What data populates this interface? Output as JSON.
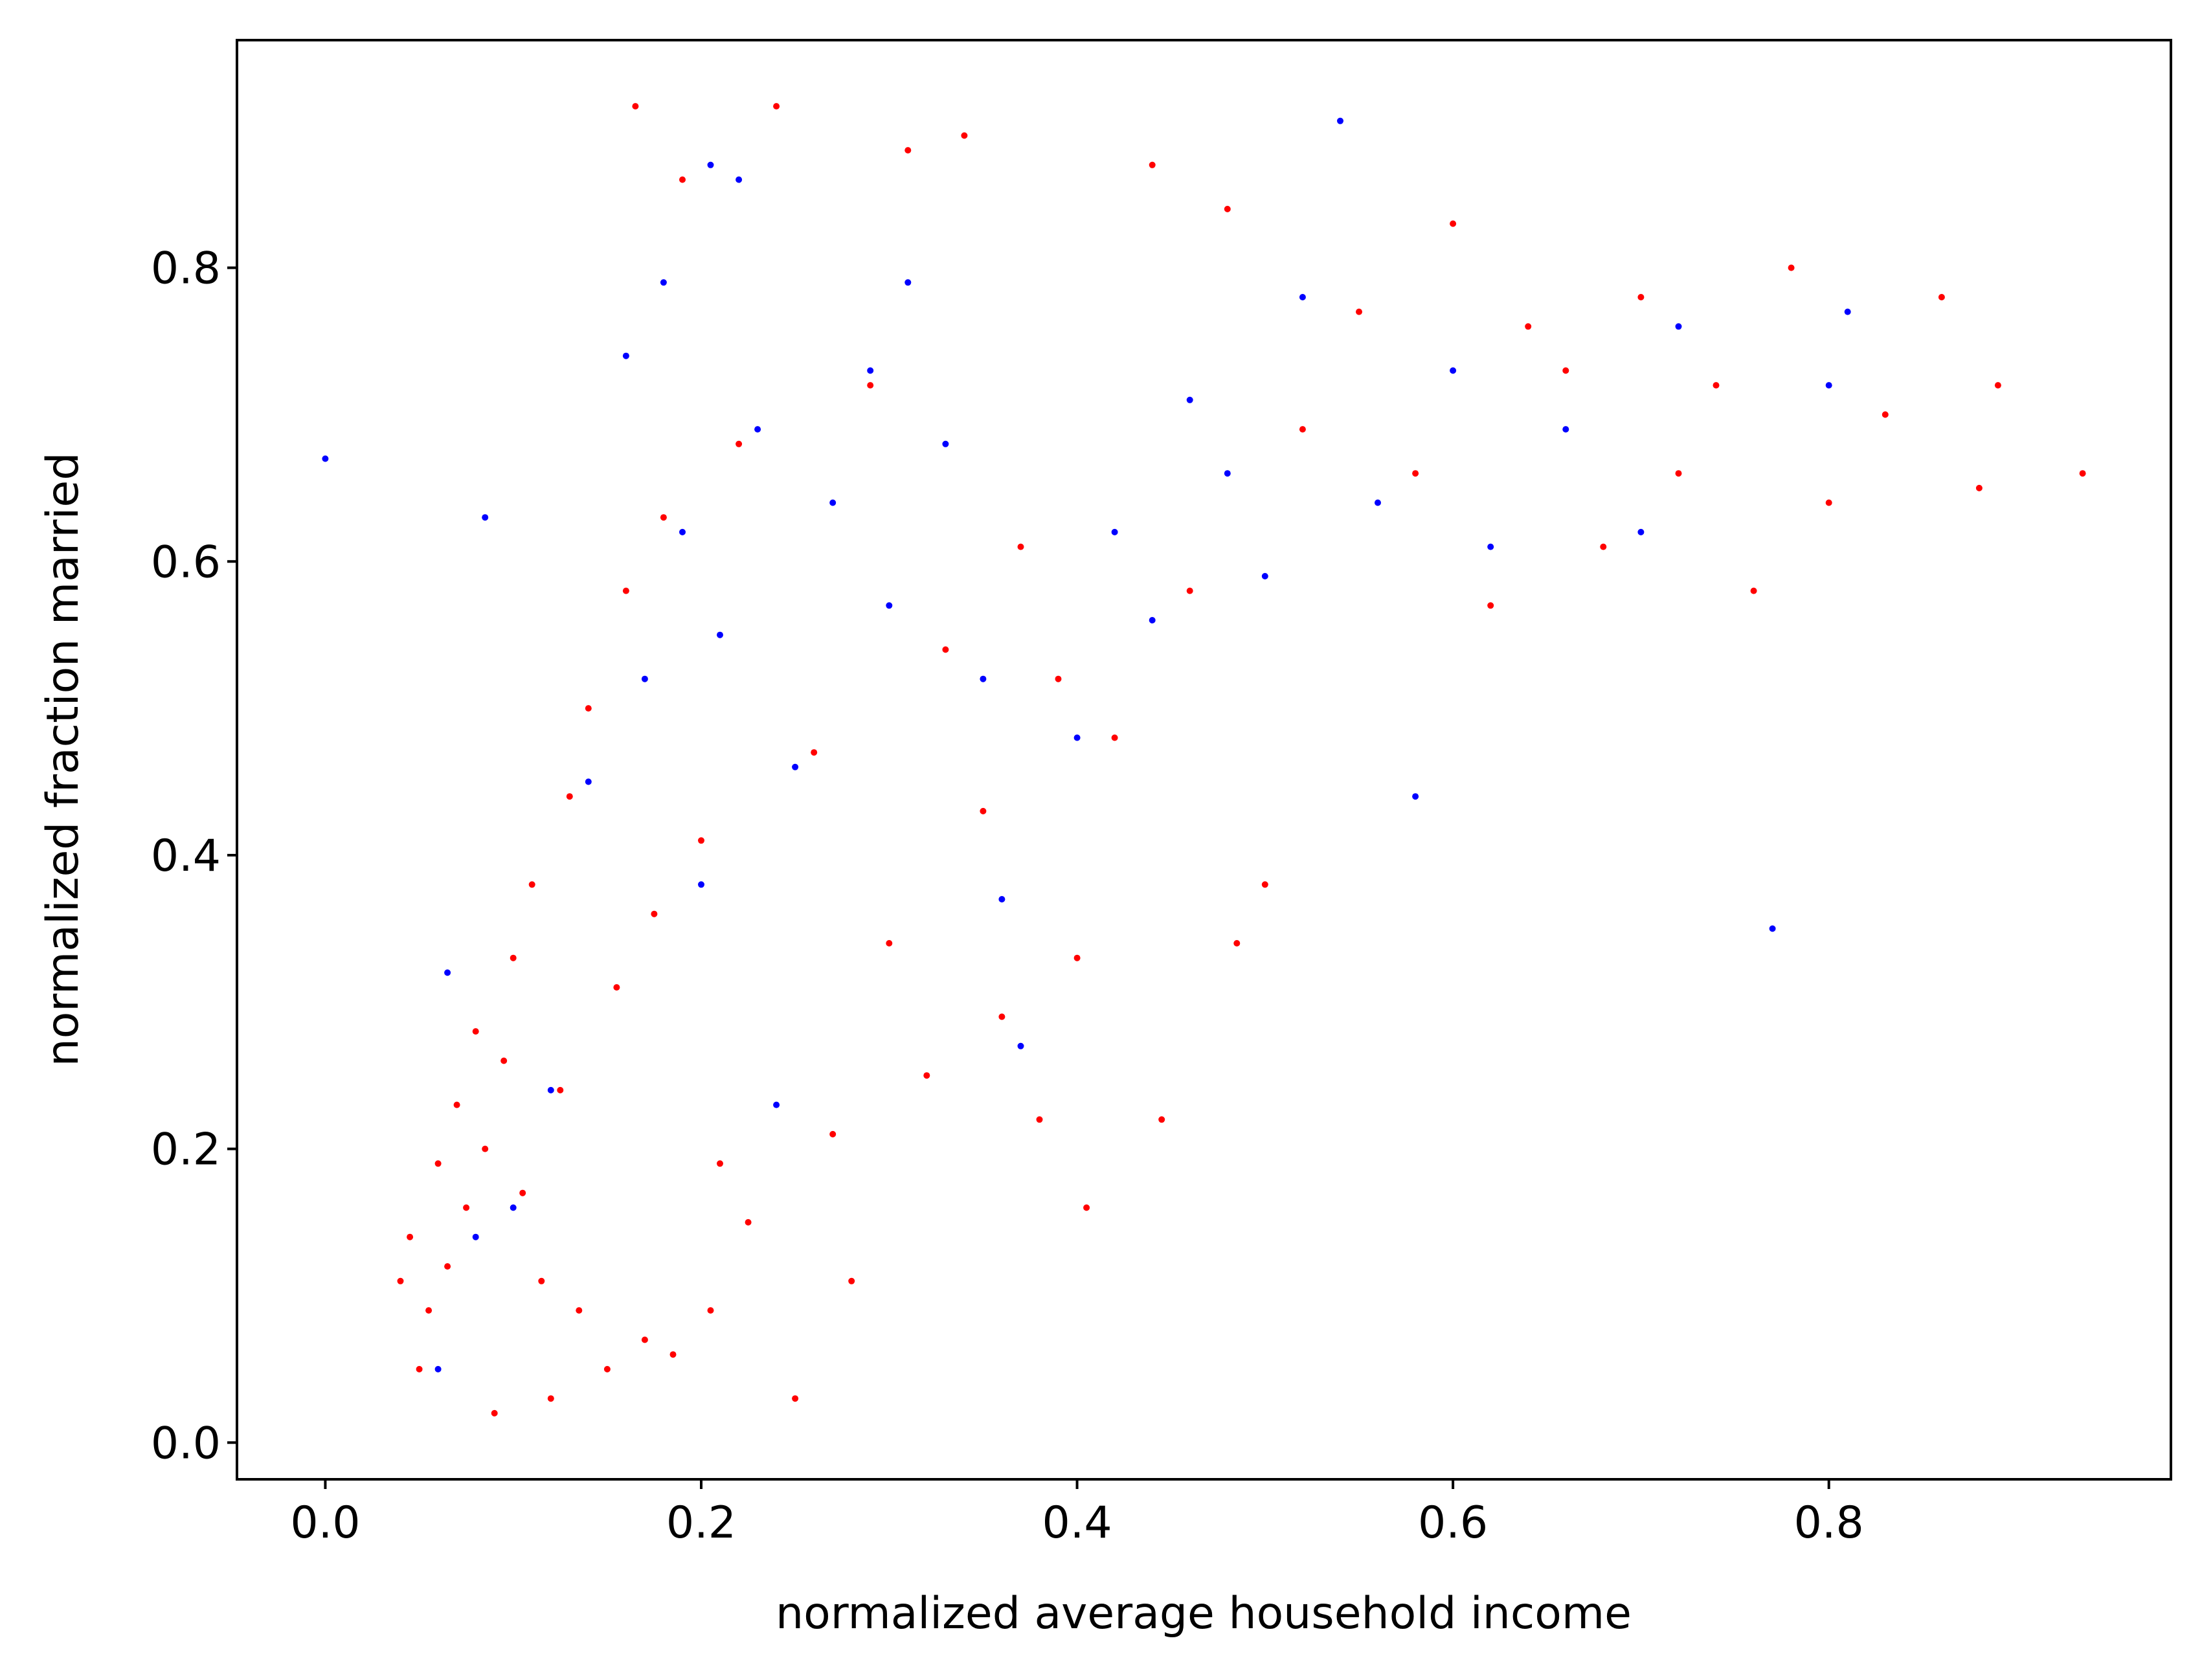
{
  "chart_data": {
    "type": "scatter",
    "title": "",
    "xlabel": "normalized average household income",
    "ylabel": "normalized fraction married",
    "xlim": [
      -0.047,
      0.982
    ],
    "ylim": [
      -0.025,
      0.955
    ],
    "xticks": [
      "0.0",
      "0.2",
      "0.4",
      "0.6",
      "0.8"
    ],
    "yticks": [
      "0.0",
      "0.2",
      "0.4",
      "0.6",
      "0.8"
    ],
    "grid": false,
    "legend": "none",
    "colors": {
      "series_red": "#ff0000",
      "series_blue": "#0000ff",
      "axis": "#000000",
      "background": "#ffffff"
    },
    "series": [
      {
        "name": "red",
        "color": "#ff0000",
        "points": [
          [
            0.04,
            0.11
          ],
          [
            0.045,
            0.14
          ],
          [
            0.05,
            0.05
          ],
          [
            0.055,
            0.09
          ],
          [
            0.06,
            0.19
          ],
          [
            0.065,
            0.12
          ],
          [
            0.07,
            0.23
          ],
          [
            0.075,
            0.16
          ],
          [
            0.08,
            0.28
          ],
          [
            0.085,
            0.2
          ],
          [
            0.09,
            0.02
          ],
          [
            0.095,
            0.26
          ],
          [
            0.1,
            0.33
          ],
          [
            0.105,
            0.17
          ],
          [
            0.11,
            0.38
          ],
          [
            0.115,
            0.11
          ],
          [
            0.12,
            0.03
          ],
          [
            0.125,
            0.24
          ],
          [
            0.13,
            0.44
          ],
          [
            0.135,
            0.09
          ],
          [
            0.14,
            0.5
          ],
          [
            0.15,
            0.05
          ],
          [
            0.155,
            0.31
          ],
          [
            0.16,
            0.58
          ],
          [
            0.165,
            0.91
          ],
          [
            0.17,
            0.07
          ],
          [
            0.175,
            0.36
          ],
          [
            0.18,
            0.63
          ],
          [
            0.185,
            0.06
          ],
          [
            0.19,
            0.86
          ],
          [
            0.2,
            0.41
          ],
          [
            0.205,
            0.09
          ],
          [
            0.21,
            0.19
          ],
          [
            0.22,
            0.68
          ],
          [
            0.225,
            0.15
          ],
          [
            0.24,
            0.91
          ],
          [
            0.25,
            0.03
          ],
          [
            0.26,
            0.47
          ],
          [
            0.27,
            0.21
          ],
          [
            0.28,
            0.11
          ],
          [
            0.29,
            0.72
          ],
          [
            0.3,
            0.34
          ],
          [
            0.31,
            0.88
          ],
          [
            0.32,
            0.25
          ],
          [
            0.33,
            0.54
          ],
          [
            0.34,
            0.89
          ],
          [
            0.35,
            0.43
          ],
          [
            0.36,
            0.29
          ],
          [
            0.37,
            0.61
          ],
          [
            0.38,
            0.22
          ],
          [
            0.39,
            0.52
          ],
          [
            0.4,
            0.33
          ],
          [
            0.405,
            0.16
          ],
          [
            0.42,
            0.48
          ],
          [
            0.44,
            0.87
          ],
          [
            0.445,
            0.22
          ],
          [
            0.46,
            0.58
          ],
          [
            0.48,
            0.84
          ],
          [
            0.485,
            0.34
          ],
          [
            0.5,
            0.38
          ],
          [
            0.52,
            0.69
          ],
          [
            0.55,
            0.77
          ],
          [
            0.58,
            0.66
          ],
          [
            0.6,
            0.83
          ],
          [
            0.62,
            0.57
          ],
          [
            0.64,
            0.76
          ],
          [
            0.66,
            0.73
          ],
          [
            0.68,
            0.61
          ],
          [
            0.7,
            0.78
          ],
          [
            0.72,
            0.66
          ],
          [
            0.74,
            0.72
          ],
          [
            0.76,
            0.58
          ],
          [
            0.78,
            0.8
          ],
          [
            0.8,
            0.64
          ],
          [
            0.83,
            0.7
          ],
          [
            0.86,
            0.78
          ],
          [
            0.88,
            0.65
          ],
          [
            0.89,
            0.72
          ],
          [
            0.935,
            0.66
          ]
        ]
      },
      {
        "name": "blue",
        "color": "#0000ff",
        "points": [
          [
            0.0,
            0.67
          ],
          [
            0.06,
            0.05
          ],
          [
            0.065,
            0.32
          ],
          [
            0.08,
            0.14
          ],
          [
            0.085,
            0.63
          ],
          [
            0.1,
            0.16
          ],
          [
            0.12,
            0.24
          ],
          [
            0.14,
            0.45
          ],
          [
            0.16,
            0.74
          ],
          [
            0.17,
            0.52
          ],
          [
            0.18,
            0.79
          ],
          [
            0.19,
            0.62
          ],
          [
            0.2,
            0.38
          ],
          [
            0.205,
            0.87
          ],
          [
            0.21,
            0.55
          ],
          [
            0.22,
            0.86
          ],
          [
            0.23,
            0.69
          ],
          [
            0.24,
            0.23
          ],
          [
            0.25,
            0.46
          ],
          [
            0.27,
            0.64
          ],
          [
            0.29,
            0.73
          ],
          [
            0.3,
            0.57
          ],
          [
            0.31,
            0.79
          ],
          [
            0.33,
            0.68
          ],
          [
            0.35,
            0.52
          ],
          [
            0.36,
            0.37
          ],
          [
            0.37,
            0.27
          ],
          [
            0.4,
            0.48
          ],
          [
            0.42,
            0.62
          ],
          [
            0.44,
            0.56
          ],
          [
            0.46,
            0.71
          ],
          [
            0.48,
            0.66
          ],
          [
            0.5,
            0.59
          ],
          [
            0.52,
            0.78
          ],
          [
            0.54,
            0.9
          ],
          [
            0.56,
            0.64
          ],
          [
            0.58,
            0.44
          ],
          [
            0.6,
            0.73
          ],
          [
            0.62,
            0.61
          ],
          [
            0.66,
            0.69
          ],
          [
            0.7,
            0.62
          ],
          [
            0.72,
            0.76
          ],
          [
            0.77,
            0.35
          ],
          [
            0.8,
            0.72
          ],
          [
            0.81,
            0.77
          ]
        ]
      }
    ]
  }
}
